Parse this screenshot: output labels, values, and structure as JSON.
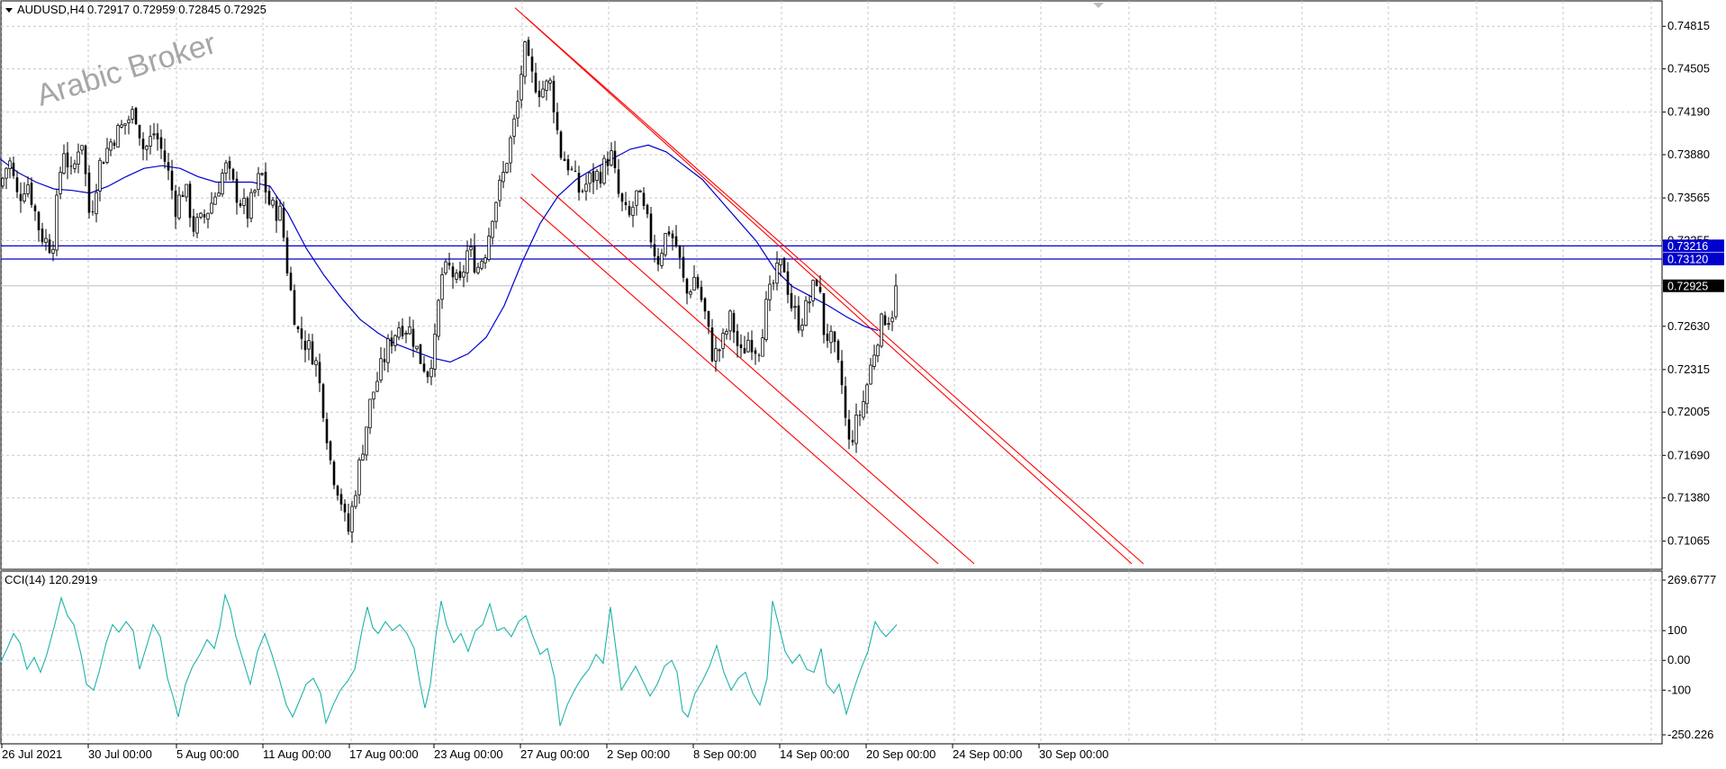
{
  "header": {
    "symbol": "AUDUSD,H4",
    "ohlc": "0.72917 0.72959 0.72845 0.72925"
  },
  "watermark": "Arabic Broker",
  "indicator": {
    "label": "CCI(14) 120.2919"
  },
  "colors": {
    "candle": "#000000",
    "ma": "#0000cc",
    "channel": "#ff0000",
    "level_lines": "#0000cc",
    "cci": "#20b2aa",
    "grid": "#c8c8c8"
  },
  "chart_data": [
    {
      "type": "candlestick",
      "symbol": "AUDUSD",
      "timeframe": "H4",
      "ylim": [
        0.7086,
        0.75
      ],
      "price_ticks": [
        "0.74815",
        "0.74505",
        "0.74190",
        "0.73880",
        "0.73565",
        "0.73255",
        "0.72630",
        "0.72315",
        "0.72005",
        "0.71690",
        "0.71380",
        "0.71065"
      ],
      "x_ticks": [
        "26 Jul 2021",
        "30 Jul 00:00",
        "5 Aug 00:00",
        "11 Aug 00:00",
        "17 Aug 00:00",
        "23 Aug 00:00",
        "27 Aug 00:00",
        "2 Sep 00:00",
        "8 Sep 00:00",
        "14 Sep 00:00",
        "20 Sep 00:00",
        "24 Sep 00:00",
        "30 Sep 00:00"
      ],
      "current_price": "0.72925",
      "horizontal_levels": [
        "0.73216",
        "0.73120"
      ],
      "close_path": [
        [
          0,
          0.7365
        ],
        [
          10,
          0.7385
        ],
        [
          20,
          0.7355
        ],
        [
          30,
          0.737
        ],
        [
          45,
          0.733
        ],
        [
          58,
          0.732
        ],
        [
          70,
          0.7395
        ],
        [
          80,
          0.737
        ],
        [
          90,
          0.7405
        ],
        [
          100,
          0.734
        ],
        [
          110,
          0.738
        ],
        [
          125,
          0.74
        ],
        [
          138,
          0.741
        ],
        [
          150,
          0.742
        ],
        [
          160,
          0.739
        ],
        [
          172,
          0.7405
        ],
        [
          185,
          0.738
        ],
        [
          195,
          0.735
        ],
        [
          205,
          0.7365
        ],
        [
          215,
          0.7335
        ],
        [
          225,
          0.734
        ],
        [
          240,
          0.736
        ],
        [
          250,
          0.738
        ],
        [
          262,
          0.736
        ],
        [
          275,
          0.7345
        ],
        [
          290,
          0.7375
        ],
        [
          300,
          0.735
        ],
        [
          312,
          0.7345
        ],
        [
          320,
          0.73
        ],
        [
          330,
          0.726
        ],
        [
          340,
          0.725
        ],
        [
          350,
          0.724
        ],
        [
          360,
          0.72
        ],
        [
          368,
          0.716
        ],
        [
          378,
          0.714
        ],
        [
          386,
          0.711
        ],
        [
          396,
          0.715
        ],
        [
          404,
          0.718
        ],
        [
          412,
          0.721
        ],
        [
          422,
          0.723
        ],
        [
          432,
          0.725
        ],
        [
          444,
          0.7265
        ],
        [
          456,
          0.726
        ],
        [
          466,
          0.724
        ],
        [
          475,
          0.723
        ],
        [
          483,
          0.725
        ],
        [
          490,
          0.73
        ],
        [
          500,
          0.7305
        ],
        [
          510,
          0.729
        ],
        [
          520,
          0.732
        ],
        [
          530,
          0.7305
        ],
        [
          540,
          0.732
        ],
        [
          548,
          0.735
        ],
        [
          558,
          0.737
        ],
        [
          566,
          0.7395
        ],
        [
          574,
          0.742
        ],
        [
          582,
          0.7465
        ],
        [
          590,
          0.7445
        ],
        [
          600,
          0.7435
        ],
        [
          612,
          0.744
        ],
        [
          622,
          0.739
        ],
        [
          632,
          0.738
        ],
        [
          644,
          0.736
        ],
        [
          655,
          0.737
        ],
        [
          668,
          0.7375
        ],
        [
          678,
          0.739
        ],
        [
          688,
          0.7355
        ],
        [
          698,
          0.734
        ],
        [
          708,
          0.736
        ],
        [
          718,
          0.734
        ],
        [
          730,
          0.731
        ],
        [
          742,
          0.7335
        ],
        [
          752,
          0.732
        ],
        [
          762,
          0.7285
        ],
        [
          772,
          0.73
        ],
        [
          782,
          0.7275
        ],
        [
          792,
          0.724
        ],
        [
          802,
          0.725
        ],
        [
          812,
          0.727
        ],
        [
          822,
          0.724
        ],
        [
          832,
          0.7255
        ],
        [
          842,
          0.7245
        ],
        [
          852,
          0.728
        ],
        [
          862,
          0.73
        ],
        [
          870,
          0.731
        ],
        [
          878,
          0.728
        ],
        [
          888,
          0.7265
        ],
        [
          898,
          0.728
        ],
        [
          908,
          0.73
        ],
        [
          915,
          0.726
        ],
        [
          925,
          0.725
        ],
        [
          935,
          0.722
        ],
        [
          942,
          0.7175
        ],
        [
          950,
          0.719
        ],
        [
          958,
          0.7205
        ],
        [
          966,
          0.723
        ],
        [
          974,
          0.7255
        ],
        [
          982,
          0.727
        ],
        [
          990,
          0.727
        ],
        [
          996,
          0.7293
        ]
      ],
      "ma_path": [
        [
          0,
          0.7385
        ],
        [
          20,
          0.7375
        ],
        [
          40,
          0.7368
        ],
        [
          60,
          0.7363
        ],
        [
          80,
          0.7362
        ],
        [
          100,
          0.736
        ],
        [
          120,
          0.7365
        ],
        [
          140,
          0.7372
        ],
        [
          160,
          0.7378
        ],
        [
          180,
          0.738
        ],
        [
          200,
          0.7378
        ],
        [
          220,
          0.7372
        ],
        [
          240,
          0.7368
        ],
        [
          260,
          0.7368
        ],
        [
          280,
          0.7368
        ],
        [
          300,
          0.7365
        ],
        [
          320,
          0.7345
        ],
        [
          340,
          0.732
        ],
        [
          360,
          0.73
        ],
        [
          380,
          0.7283
        ],
        [
          400,
          0.7268
        ],
        [
          420,
          0.7258
        ],
        [
          440,
          0.725
        ],
        [
          460,
          0.7245
        ],
        [
          480,
          0.724
        ],
        [
          500,
          0.7237
        ],
        [
          520,
          0.7243
        ],
        [
          540,
          0.7255
        ],
        [
          560,
          0.7278
        ],
        [
          580,
          0.731
        ],
        [
          600,
          0.7338
        ],
        [
          620,
          0.7358
        ],
        [
          640,
          0.737
        ],
        [
          660,
          0.7378
        ],
        [
          680,
          0.7385
        ],
        [
          700,
          0.7392
        ],
        [
          720,
          0.7395
        ],
        [
          740,
          0.739
        ],
        [
          760,
          0.738
        ],
        [
          780,
          0.737
        ],
        [
          800,
          0.7355
        ],
        [
          820,
          0.734
        ],
        [
          840,
          0.7325
        ],
        [
          860,
          0.7305
        ],
        [
          880,
          0.7292
        ],
        [
          900,
          0.7285
        ],
        [
          920,
          0.7278
        ],
        [
          940,
          0.727
        ],
        [
          960,
          0.7263
        ],
        [
          975,
          0.726
        ]
      ],
      "channels": [
        {
          "from": [
            572,
            0.7495
          ],
          "to": [
            1257,
            0.709
          ]
        },
        {
          "from": [
            584,
            0.7488
          ],
          "to": [
            1270,
            0.709
          ]
        },
        {
          "from": [
            590,
            0.7374
          ],
          "to": [
            1082,
            0.709
          ]
        },
        {
          "from": [
            578,
            0.7357
          ],
          "to": [
            1042,
            0.709
          ]
        }
      ]
    },
    {
      "type": "line",
      "name": "CCI(14)",
      "ylim": [
        -250.226,
        269.6777
      ],
      "y_ticks": [
        "269.6777",
        "100",
        "0.00",
        "-100",
        "-250.226"
      ],
      "last_value": "120.2919",
      "path": [
        [
          0,
          -10
        ],
        [
          8,
          40
        ],
        [
          15,
          90
        ],
        [
          22,
          60
        ],
        [
          30,
          -30
        ],
        [
          38,
          10
        ],
        [
          45,
          -40
        ],
        [
          52,
          20
        ],
        [
          60,
          110
        ],
        [
          68,
          210
        ],
        [
          75,
          150
        ],
        [
          82,
          120
        ],
        [
          90,
          20
        ],
        [
          96,
          -80
        ],
        [
          104,
          -100
        ],
        [
          110,
          -40
        ],
        [
          118,
          60
        ],
        [
          125,
          120
        ],
        [
          132,
          95
        ],
        [
          140,
          130
        ],
        [
          148,
          100
        ],
        [
          155,
          -30
        ],
        [
          162,
          40
        ],
        [
          170,
          120
        ],
        [
          178,
          80
        ],
        [
          186,
          -60
        ],
        [
          192,
          -120
        ],
        [
          198,
          -190
        ],
        [
          206,
          -80
        ],
        [
          214,
          -20
        ],
        [
          222,
          20
        ],
        [
          230,
          70
        ],
        [
          238,
          40
        ],
        [
          244,
          110
        ],
        [
          250,
          220
        ],
        [
          256,
          170
        ],
        [
          262,
          80
        ],
        [
          270,
          0
        ],
        [
          278,
          -80
        ],
        [
          286,
          30
        ],
        [
          294,
          90
        ],
        [
          302,
          20
        ],
        [
          310,
          -60
        ],
        [
          318,
          -150
        ],
        [
          325,
          -190
        ],
        [
          332,
          -140
        ],
        [
          340,
          -80
        ],
        [
          348,
          -60
        ],
        [
          356,
          -110
        ],
        [
          362,
          -210
        ],
        [
          370,
          -150
        ],
        [
          378,
          -100
        ],
        [
          386,
          -70
        ],
        [
          394,
          -30
        ],
        [
          402,
          100
        ],
        [
          408,
          180
        ],
        [
          414,
          110
        ],
        [
          420,
          90
        ],
        [
          428,
          130
        ],
        [
          436,
          100
        ],
        [
          444,
          120
        ],
        [
          452,
          90
        ],
        [
          460,
          40
        ],
        [
          466,
          -70
        ],
        [
          472,
          -160
        ],
        [
          478,
          -80
        ],
        [
          484,
          80
        ],
        [
          490,
          200
        ],
        [
          496,
          120
        ],
        [
          504,
          60
        ],
        [
          512,
          90
        ],
        [
          520,
          30
        ],
        [
          528,
          100
        ],
        [
          536,
          120
        ],
        [
          544,
          190
        ],
        [
          552,
          100
        ],
        [
          560,
          110
        ],
        [
          568,
          80
        ],
        [
          576,
          130
        ],
        [
          584,
          150
        ],
        [
          592,
          80
        ],
        [
          600,
          20
        ],
        [
          608,
          40
        ],
        [
          616,
          -60
        ],
        [
          622,
          -220
        ],
        [
          630,
          -150
        ],
        [
          638,
          -100
        ],
        [
          646,
          -60
        ],
        [
          654,
          -30
        ],
        [
          662,
          20
        ],
        [
          670,
          -10
        ],
        [
          678,
          180
        ],
        [
          684,
          40
        ],
        [
          690,
          -100
        ],
        [
          698,
          -60
        ],
        [
          706,
          -20
        ],
        [
          714,
          -70
        ],
        [
          722,
          -120
        ],
        [
          730,
          -80
        ],
        [
          738,
          -20
        ],
        [
          746,
          0
        ],
        [
          752,
          -40
        ],
        [
          758,
          -170
        ],
        [
          764,
          -190
        ],
        [
          772,
          -110
        ],
        [
          780,
          -70
        ],
        [
          788,
          -20
        ],
        [
          796,
          50
        ],
        [
          804,
          -40
        ],
        [
          812,
          -100
        ],
        [
          820,
          -60
        ],
        [
          828,
          -40
        ],
        [
          836,
          -110
        ],
        [
          844,
          -150
        ],
        [
          852,
          -60
        ],
        [
          858,
          200
        ],
        [
          864,
          130
        ],
        [
          872,
          30
        ],
        [
          880,
          -10
        ],
        [
          888,
          20
        ],
        [
          896,
          -30
        ],
        [
          904,
          -40
        ],
        [
          912,
          40
        ],
        [
          918,
          -80
        ],
        [
          926,
          -110
        ],
        [
          932,
          -80
        ],
        [
          940,
          -180
        ],
        [
          948,
          -100
        ],
        [
          956,
          -30
        ],
        [
          964,
          30
        ],
        [
          972,
          130
        ],
        [
          978,
          100
        ],
        [
          984,
          80
        ],
        [
          990,
          100
        ],
        [
          996,
          120
        ]
      ]
    }
  ]
}
